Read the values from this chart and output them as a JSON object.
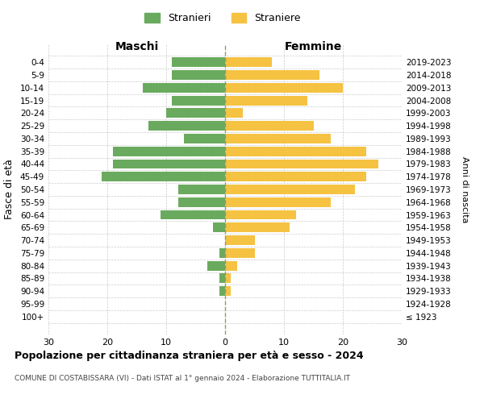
{
  "age_groups": [
    "0-4",
    "5-9",
    "10-14",
    "15-19",
    "20-24",
    "25-29",
    "30-34",
    "35-39",
    "40-44",
    "45-49",
    "50-54",
    "55-59",
    "60-64",
    "65-69",
    "70-74",
    "75-79",
    "80-84",
    "85-89",
    "90-94",
    "95-99",
    "100+"
  ],
  "birth_years": [
    "2019-2023",
    "2014-2018",
    "2009-2013",
    "2004-2008",
    "1999-2003",
    "1994-1998",
    "1989-1993",
    "1984-1988",
    "1979-1983",
    "1974-1978",
    "1969-1973",
    "1964-1968",
    "1959-1963",
    "1954-1958",
    "1949-1953",
    "1944-1948",
    "1939-1943",
    "1934-1938",
    "1929-1933",
    "1924-1928",
    "≤ 1923"
  ],
  "males": [
    9,
    9,
    14,
    9,
    10,
    13,
    7,
    19,
    19,
    21,
    8,
    8,
    11,
    2,
    0,
    1,
    3,
    1,
    1,
    0,
    0
  ],
  "females": [
    8,
    16,
    20,
    14,
    3,
    15,
    18,
    24,
    26,
    24,
    22,
    18,
    12,
    11,
    5,
    5,
    2,
    1,
    1,
    0,
    0
  ],
  "male_color": "#6aaa5e",
  "female_color": "#f5c242",
  "bar_height": 0.75,
  "xlim": 30,
  "title": "Popolazione per cittadinanza straniera per età e sesso - 2024",
  "subtitle": "COMUNE DI COSTABISSARA (VI) - Dati ISTAT al 1° gennaio 2024 - Elaborazione TUTTITALIA.IT",
  "xlabel_left": "Maschi",
  "xlabel_right": "Femmine",
  "ylabel_left": "Fasce di età",
  "ylabel_right": "Anni di nascita",
  "legend_males": "Stranieri",
  "legend_females": "Straniere",
  "background_color": "#ffffff",
  "grid_color": "#cccccc"
}
